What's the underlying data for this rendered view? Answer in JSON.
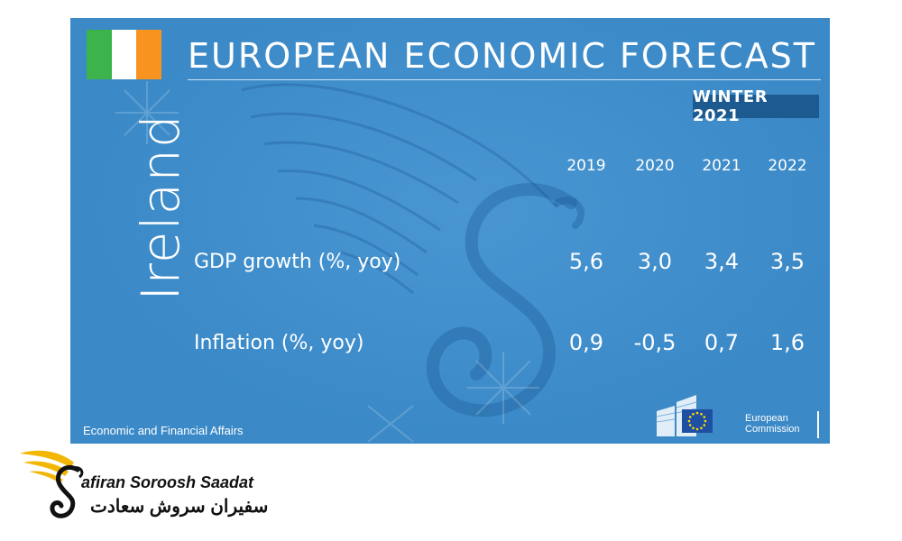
{
  "header": {
    "title": "EUROPEAN ECONOMIC FORECAST",
    "edition": "WINTER 2021"
  },
  "country": "Ireland",
  "colors": {
    "background": "#3d8fcf",
    "badge": "#1c5a8f",
    "flag_green": "#3cb44b",
    "flag_white": "#ffffff",
    "flag_orange": "#f7931e"
  },
  "table": {
    "years": [
      "2019",
      "2020",
      "2021",
      "2022"
    ],
    "rows": [
      {
        "label": "GDP growth (%, yoy)",
        "values": [
          "5,6",
          "3,0",
          "3,4",
          "3,5"
        ]
      },
      {
        "label": "Inflation (%, yoy)",
        "values": [
          "0,9",
          "-0,5",
          "0,7",
          "1,6"
        ]
      }
    ]
  },
  "footer": {
    "department": "Economic and Financial Affairs",
    "logo_line1": "European",
    "logo_line2": "Commission",
    "logo_icon": "eu-flag-icon"
  },
  "brand": {
    "name_latin": "afiran Soroosh Saadat",
    "name_persian": "سفیران سروش سعادت",
    "logo_icon": "wing-s-logo-icon"
  }
}
